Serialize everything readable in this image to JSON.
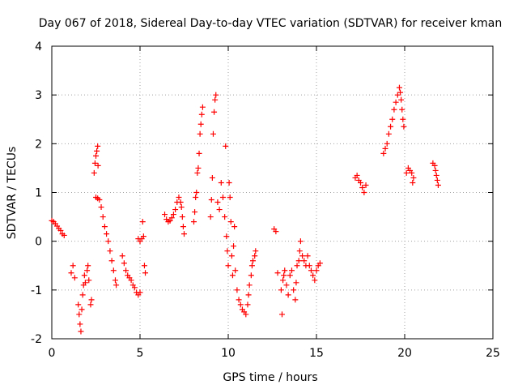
{
  "chart_data": {
    "type": "scatter",
    "title": "Day 067 of 2018, Sidereal Day-to-day VTEC variation (SDTVAR) for receiver kman",
    "xlabel": "GPS time / hours",
    "ylabel": "SDTVAR / TECUs",
    "xlim": [
      0,
      25
    ],
    "ylim": [
      -2,
      4
    ],
    "xticks": [
      0,
      5,
      10,
      15,
      20,
      25
    ],
    "xtick_labels": [
      "0",
      "5",
      "10",
      "15",
      "20",
      "25"
    ],
    "yticks": [
      -2,
      -1,
      0,
      1,
      2,
      3,
      4
    ],
    "ytick_labels": [
      "-2",
      "-1",
      "0",
      "1",
      "2",
      "3",
      "4"
    ],
    "grid": true,
    "marker": "+",
    "color": "#ff0000",
    "series": [
      {
        "name": "SDTVAR",
        "points": [
          [
            0.0,
            0.42
          ],
          [
            0.1,
            0.4
          ],
          [
            0.2,
            0.36
          ],
          [
            0.3,
            0.31
          ],
          [
            0.4,
            0.26
          ],
          [
            0.5,
            0.22
          ],
          [
            0.6,
            0.15
          ],
          [
            0.7,
            0.12
          ],
          [
            1.1,
            -0.65
          ],
          [
            1.2,
            -0.5
          ],
          [
            1.3,
            -0.75
          ],
          [
            1.5,
            -1.3
          ],
          [
            1.55,
            -1.5
          ],
          [
            1.6,
            -1.7
          ],
          [
            1.65,
            -1.85
          ],
          [
            1.7,
            -1.4
          ],
          [
            1.75,
            -1.1
          ],
          [
            1.8,
            -0.9
          ],
          [
            1.85,
            -0.7
          ],
          [
            1.9,
            -0.85
          ],
          [
            2.0,
            -0.6
          ],
          [
            2.05,
            -0.5
          ],
          [
            2.1,
            -0.8
          ],
          [
            2.2,
            -1.3
          ],
          [
            2.25,
            -1.2
          ],
          [
            2.4,
            1.4
          ],
          [
            2.45,
            1.6
          ],
          [
            2.5,
            1.75
          ],
          [
            2.55,
            1.85
          ],
          [
            2.6,
            1.95
          ],
          [
            2.62,
            1.55
          ],
          [
            2.5,
            0.9
          ],
          [
            2.6,
            0.88
          ],
          [
            2.7,
            0.85
          ],
          [
            2.8,
            0.7
          ],
          [
            2.9,
            0.5
          ],
          [
            3.0,
            0.3
          ],
          [
            3.1,
            0.15
          ],
          [
            3.2,
            0.0
          ],
          [
            3.3,
            -0.2
          ],
          [
            3.4,
            -0.4
          ],
          [
            3.5,
            -0.6
          ],
          [
            3.6,
            -0.8
          ],
          [
            3.65,
            -0.9
          ],
          [
            4.0,
            -0.3
          ],
          [
            4.1,
            -0.45
          ],
          [
            4.2,
            -0.6
          ],
          [
            4.3,
            -0.7
          ],
          [
            4.4,
            -0.75
          ],
          [
            4.5,
            -0.8
          ],
          [
            4.6,
            -0.9
          ],
          [
            4.7,
            -0.95
          ],
          [
            4.8,
            -1.05
          ],
          [
            4.9,
            -1.1
          ],
          [
            5.0,
            -1.05
          ],
          [
            4.9,
            0.05
          ],
          [
            5.0,
            0.0
          ],
          [
            5.1,
            0.05
          ],
          [
            5.15,
            0.4
          ],
          [
            5.2,
            0.1
          ],
          [
            5.25,
            -0.5
          ],
          [
            5.3,
            -0.65
          ],
          [
            6.4,
            0.55
          ],
          [
            6.5,
            0.45
          ],
          [
            6.6,
            0.4
          ],
          [
            6.7,
            0.42
          ],
          [
            6.8,
            0.48
          ],
          [
            6.9,
            0.55
          ],
          [
            7.0,
            0.65
          ],
          [
            7.1,
            0.8
          ],
          [
            7.2,
            0.9
          ],
          [
            7.3,
            0.8
          ],
          [
            7.35,
            0.7
          ],
          [
            7.4,
            0.5
          ],
          [
            7.45,
            0.3
          ],
          [
            7.5,
            0.15
          ],
          [
            8.05,
            0.4
          ],
          [
            8.1,
            0.6
          ],
          [
            8.15,
            0.9
          ],
          [
            8.2,
            1.0
          ],
          [
            8.25,
            1.4
          ],
          [
            8.3,
            1.5
          ],
          [
            8.35,
            1.8
          ],
          [
            8.4,
            2.2
          ],
          [
            8.45,
            2.4
          ],
          [
            8.5,
            2.6
          ],
          [
            8.55,
            2.75
          ],
          [
            9.0,
            0.5
          ],
          [
            9.05,
            0.85
          ],
          [
            9.1,
            1.3
          ],
          [
            9.15,
            2.2
          ],
          [
            9.2,
            2.65
          ],
          [
            9.25,
            2.9
          ],
          [
            9.3,
            3.0
          ],
          [
            9.4,
            0.8
          ],
          [
            9.5,
            0.65
          ],
          [
            9.6,
            1.2
          ],
          [
            9.7,
            0.9
          ],
          [
            9.8,
            0.5
          ],
          [
            9.85,
            1.95
          ],
          [
            9.9,
            0.1
          ],
          [
            9.95,
            -0.2
          ],
          [
            10.0,
            -0.5
          ],
          [
            10.05,
            1.2
          ],
          [
            10.1,
            0.9
          ],
          [
            10.15,
            0.4
          ],
          [
            10.2,
            -0.3
          ],
          [
            10.25,
            -0.7
          ],
          [
            10.3,
            -0.1
          ],
          [
            10.35,
            0.3
          ],
          [
            10.4,
            -0.6
          ],
          [
            10.5,
            -1.0
          ],
          [
            10.6,
            -1.2
          ],
          [
            10.7,
            -1.3
          ],
          [
            10.8,
            -1.4
          ],
          [
            10.9,
            -1.45
          ],
          [
            11.0,
            -1.5
          ],
          [
            11.1,
            -1.3
          ],
          [
            11.15,
            -1.1
          ],
          [
            11.2,
            -0.9
          ],
          [
            11.3,
            -0.7
          ],
          [
            11.35,
            -0.5
          ],
          [
            11.4,
            -0.4
          ],
          [
            11.5,
            -0.3
          ],
          [
            11.55,
            -0.2
          ],
          [
            12.6,
            0.25
          ],
          [
            12.7,
            0.2
          ],
          [
            12.8,
            -0.65
          ],
          [
            13.0,
            -1.0
          ],
          [
            13.05,
            -1.5
          ],
          [
            13.1,
            -0.8
          ],
          [
            13.15,
            -0.7
          ],
          [
            13.2,
            -0.6
          ],
          [
            13.3,
            -0.9
          ],
          [
            13.4,
            -1.1
          ],
          [
            13.5,
            -0.7
          ],
          [
            13.6,
            -0.6
          ],
          [
            13.7,
            -1.0
          ],
          [
            13.8,
            -1.2
          ],
          [
            13.85,
            -0.85
          ],
          [
            13.9,
            -0.5
          ],
          [
            14.0,
            -0.4
          ],
          [
            14.05,
            -0.2
          ],
          [
            14.1,
            0.0
          ],
          [
            14.2,
            -0.3
          ],
          [
            14.3,
            -0.4
          ],
          [
            14.4,
            -0.5
          ],
          [
            14.5,
            -0.3
          ],
          [
            14.6,
            -0.5
          ],
          [
            14.7,
            -0.6
          ],
          [
            14.8,
            -0.7
          ],
          [
            14.9,
            -0.8
          ],
          [
            15.0,
            -0.6
          ],
          [
            15.1,
            -0.5
          ],
          [
            15.2,
            -0.45
          ],
          [
            17.2,
            1.3
          ],
          [
            17.3,
            1.35
          ],
          [
            17.4,
            1.25
          ],
          [
            17.5,
            1.2
          ],
          [
            17.6,
            1.1
          ],
          [
            17.7,
            1.0
          ],
          [
            17.8,
            1.15
          ],
          [
            18.8,
            1.8
          ],
          [
            18.9,
            1.9
          ],
          [
            19.0,
            2.0
          ],
          [
            19.1,
            2.2
          ],
          [
            19.2,
            2.35
          ],
          [
            19.3,
            2.5
          ],
          [
            19.4,
            2.7
          ],
          [
            19.5,
            2.85
          ],
          [
            19.6,
            3.0
          ],
          [
            19.7,
            3.15
          ],
          [
            19.75,
            3.05
          ],
          [
            19.8,
            2.9
          ],
          [
            19.85,
            2.7
          ],
          [
            19.9,
            2.5
          ],
          [
            19.95,
            2.35
          ],
          [
            20.1,
            1.4
          ],
          [
            20.2,
            1.5
          ],
          [
            20.3,
            1.45
          ],
          [
            20.4,
            1.4
          ],
          [
            20.5,
            1.3
          ],
          [
            20.45,
            1.2
          ],
          [
            21.6,
            1.6
          ],
          [
            21.7,
            1.55
          ],
          [
            21.75,
            1.45
          ],
          [
            21.8,
            1.35
          ],
          [
            21.85,
            1.25
          ],
          [
            21.9,
            1.15
          ]
        ]
      }
    ]
  }
}
